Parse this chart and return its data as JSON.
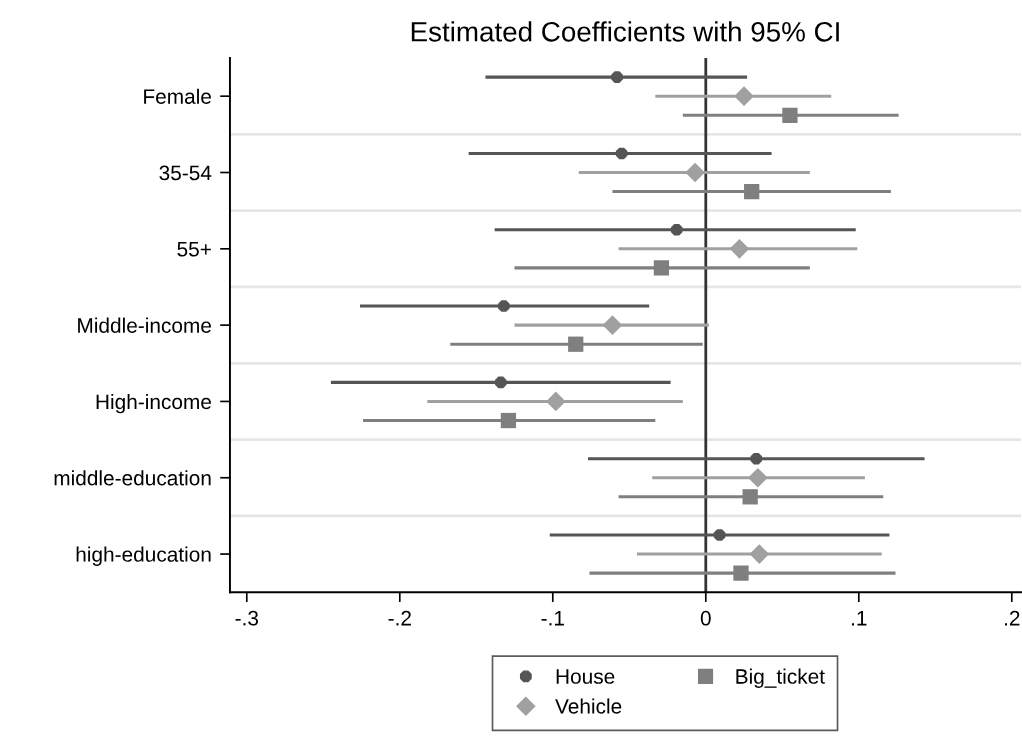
{
  "chart_data": {
    "type": "scatter",
    "orientation": "horizontal",
    "title": "Estimated Coefficients with 95% CI",
    "categories": [
      "Female",
      "35-54",
      "55+",
      "Middle-income",
      "High-income",
      "middle-education",
      "high-education"
    ],
    "series": [
      {
        "name": "House",
        "color": "#555555",
        "marker": "circle",
        "values": [
          -0.058,
          -0.055,
          -0.019,
          -0.132,
          -0.134,
          0.033,
          0.009
        ],
        "errors": [
          [
            -0.144,
            0.027
          ],
          [
            -0.155,
            0.043
          ],
          [
            -0.138,
            0.098
          ],
          [
            -0.226,
            -0.037
          ],
          [
            -0.245,
            -0.023
          ],
          [
            -0.077,
            0.143
          ],
          [
            -0.102,
            0.12
          ]
        ]
      },
      {
        "name": "Vehicle",
        "color": "#a0a0a0",
        "marker": "diamond",
        "values": [
          0.025,
          -0.007,
          0.022,
          -0.061,
          -0.098,
          0.034,
          0.035
        ],
        "errors": [
          [
            -0.033,
            0.082
          ],
          [
            -0.083,
            0.068
          ],
          [
            -0.057,
            0.099
          ],
          [
            -0.125,
            0.002
          ],
          [
            -0.182,
            -0.015
          ],
          [
            -0.035,
            0.104
          ],
          [
            -0.045,
            0.115
          ]
        ]
      },
      {
        "name": "Big_ticket",
        "color": "#7f7f7f",
        "marker": "square",
        "values": [
          0.055,
          0.03,
          -0.029,
          -0.085,
          -0.129,
          0.029,
          0.023
        ],
        "errors": [
          [
            -0.015,
            0.126
          ],
          [
            -0.061,
            0.121
          ],
          [
            -0.125,
            0.068
          ],
          [
            -0.167,
            -0.002
          ],
          [
            -0.224,
            -0.033
          ],
          [
            -0.057,
            0.116
          ],
          [
            -0.076,
            0.124
          ]
        ]
      }
    ],
    "xlim": [
      -0.311,
      0.206
    ],
    "xticks": [
      {
        "value": -0.3,
        "label": "-.3"
      },
      {
        "value": -0.2,
        "label": "-.2"
      },
      {
        "value": -0.1,
        "label": "-.1"
      },
      0,
      {
        "value": 0.1,
        "label": ".1"
      },
      {
        "value": 0.2,
        "label": ".2"
      }
    ],
    "ref_lines": [
      {
        "axis": "x",
        "value": 0,
        "color": "#333333",
        "line_style": "solid"
      }
    ],
    "grid": "y",
    "legend": "bottom"
  }
}
